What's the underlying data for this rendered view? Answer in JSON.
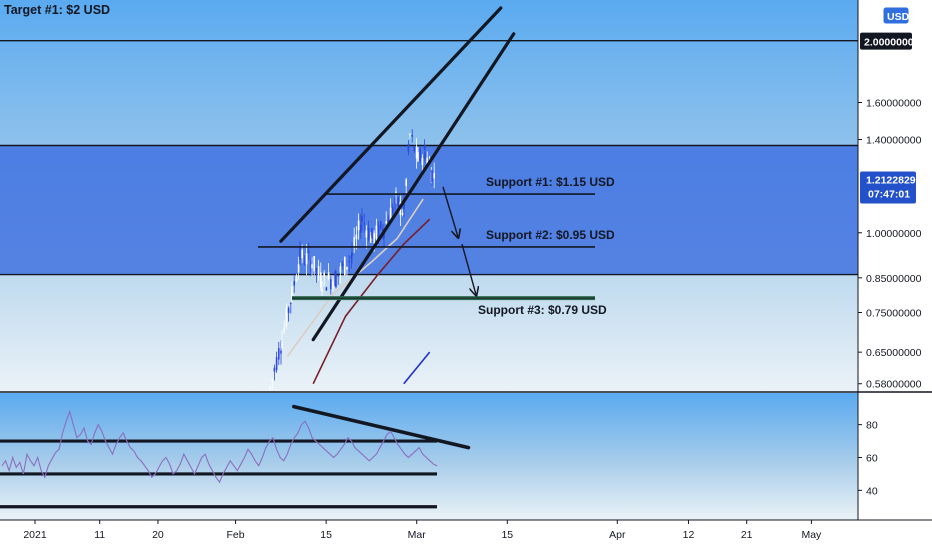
{
  "chart_data": [
    {
      "type": "candlestick",
      "pane": "price",
      "title": "Target #1: $2 USD",
      "currency_button": "USD",
      "y_scale": "log",
      "ylim": [
        0.565,
        2.25
      ],
      "y_ticks": [
        {
          "value": 2.0,
          "label": "2.00000000"
        },
        {
          "value": 1.6,
          "label": "1.60000000"
        },
        {
          "value": 1.4,
          "label": "1.40000000"
        },
        {
          "value": 1.0,
          "label": "1.00000000"
        },
        {
          "value": 0.85,
          "label": "0.85000000"
        },
        {
          "value": 0.75,
          "label": "0.75000000"
        },
        {
          "value": 0.65,
          "label": "0.65000000"
        },
        {
          "value": 0.58,
          "label": "0.58000000"
        }
      ],
      "last_price": {
        "label": "1.21228291",
        "countdown": "07:47:01",
        "value": 1.212
      },
      "zone": {
        "from": 0.86,
        "to": 1.37,
        "color": "#3d6fe0"
      },
      "horizontal_levels": [
        2.0,
        1.37,
        0.86
      ],
      "annotations": [
        {
          "label": "Support #1: $1.15 USD",
          "value": 1.15
        },
        {
          "label": "Support #2: $0.95 USD",
          "value": 0.95
        },
        {
          "label": "Support #3: $0.79 USD",
          "value": 0.79
        }
      ],
      "wedge_channel": {
        "upper": [
          [
            "2021-02-08",
            0.97
          ],
          [
            "2021-03-14",
            2.25
          ]
        ],
        "lower": [
          [
            "2021-02-13",
            0.68
          ],
          [
            "2021-03-16",
            2.05
          ]
        ]
      },
      "moving_averages": [
        {
          "color": "#d9cfc0",
          "points": [
            [
              "2021-02-09",
              0.64
            ],
            [
              "2021-02-16",
              0.8
            ],
            [
              "2021-02-22",
              0.9
            ],
            [
              "2021-02-26",
              0.98
            ],
            [
              "2021-03-02",
              1.13
            ]
          ]
        },
        {
          "color": "#7a1f28",
          "points": [
            [
              "2021-02-13",
              0.58
            ],
            [
              "2021-02-18",
              0.74
            ],
            [
              "2021-02-23",
              0.86
            ],
            [
              "2021-02-27",
              0.96
            ],
            [
              "2021-03-03",
              1.05
            ]
          ]
        },
        {
          "color": "#1f2fd0",
          "points": [
            [
              "2021-02-27",
              0.58
            ],
            [
              "2021-03-03",
              0.65
            ]
          ]
        }
      ]
    },
    {
      "type": "line",
      "pane": "rsi",
      "ylim": [
        25,
        95
      ],
      "y_ticks": [
        80,
        60,
        40
      ],
      "series_color": "#8a6fbf",
      "horizontal_lines": [
        70,
        50,
        30
      ],
      "trendline": [
        [
          "2021-02-10",
          91
        ],
        [
          "2021-03-09",
          66
        ]
      ],
      "values": [
        55,
        58,
        52,
        60,
        54,
        57,
        50,
        62,
        58,
        55,
        60,
        52,
        48,
        55,
        59,
        63,
        65,
        75,
        82,
        88,
        80,
        72,
        74,
        78,
        70,
        68,
        75,
        80,
        76,
        70,
        66,
        62,
        68,
        72,
        75,
        70,
        66,
        64,
        60,
        58,
        55,
        52,
        48,
        50,
        54,
        58,
        60,
        56,
        50,
        52,
        56,
        62,
        58,
        54,
        50,
        55,
        60,
        62,
        56,
        52,
        48,
        45,
        50,
        54,
        58,
        55,
        52,
        56,
        60,
        65,
        62,
        58,
        55,
        60,
        66,
        70,
        72,
        65,
        60,
        58,
        62,
        68,
        72,
        75,
        80,
        82,
        78,
        72,
        70,
        68,
        66,
        64,
        62,
        60,
        62,
        65,
        68,
        72,
        70,
        66,
        64,
        62,
        60,
        58,
        60,
        62,
        66,
        70,
        74,
        76,
        72,
        68,
        65,
        62,
        60,
        62,
        64,
        66,
        62,
        60,
        58,
        56,
        55
      ]
    }
  ],
  "x_axis": {
    "labels": [
      {
        "date": "2021-01-01",
        "text": "2021"
      },
      {
        "date": "2021-01-11",
        "text": "11"
      },
      {
        "date": "2021-01-20",
        "text": "20"
      },
      {
        "date": "2021-02-01",
        "text": "Feb"
      },
      {
        "date": "2021-02-15",
        "text": "15"
      },
      {
        "date": "2021-03-01",
        "text": "Mar"
      },
      {
        "date": "2021-03-15",
        "text": "15"
      },
      {
        "date": "2021-04-01",
        "text": "Apr"
      },
      {
        "date": "2021-04-12",
        "text": "12"
      },
      {
        "date": "2021-04-21",
        "text": "21"
      },
      {
        "date": "2021-05-01",
        "text": "May"
      }
    ]
  },
  "colors": {
    "bg_top": "#5aaaf0",
    "bg_bottom": "#eaf2f7",
    "last_price_tag": "#2351c9",
    "candle_up": "#ffffff",
    "candle_down": "#2b48e0",
    "support3_line": "#2f6b4f"
  }
}
